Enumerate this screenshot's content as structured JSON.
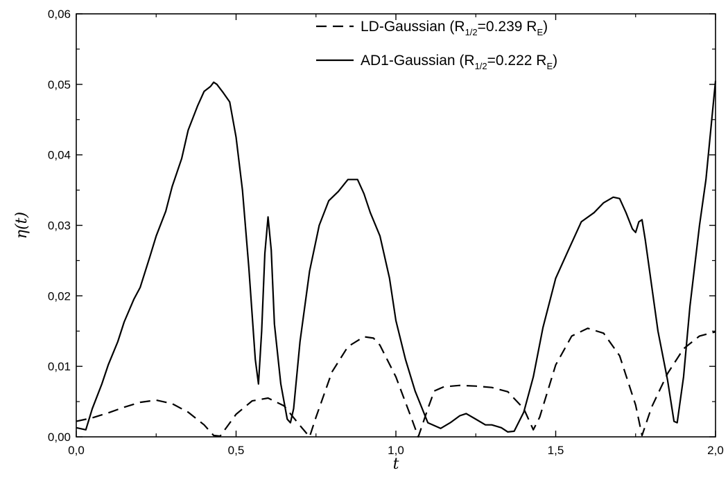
{
  "chart_data": {
    "type": "line",
    "title": "",
    "xlabel": "t",
    "ylabel": "η(t)",
    "xlim": [
      0.0,
      2.0
    ],
    "ylim": [
      0.0,
      0.06
    ],
    "x_ticks": [
      0.0,
      0.5,
      1.0,
      1.5,
      2.0
    ],
    "x_tick_labels": [
      "0,0",
      "0,5",
      "1,0",
      "1,5",
      "2,0"
    ],
    "y_ticks": [
      0.0,
      0.01,
      0.02,
      0.03,
      0.04,
      0.05,
      0.06
    ],
    "y_tick_labels": [
      "0,00",
      "0,01",
      "0,02",
      "0,03",
      "0,04",
      "0,05",
      "0,06"
    ],
    "grid": false,
    "legend_position": "top-right",
    "series": [
      {
        "name": "LD-Gaussian (R1/2=0.239 RE)",
        "legend": {
          "main": "LD-Gaussian (R",
          "sub": "1/2",
          "mid": "=0.239 R",
          "sub2": "E",
          "end": ")"
        },
        "style": "dashed",
        "color": "#000000",
        "x": [
          0.0,
          0.05,
          0.1,
          0.15,
          0.2,
          0.25,
          0.3,
          0.35,
          0.4,
          0.43,
          0.45,
          0.5,
          0.55,
          0.6,
          0.65,
          0.7,
          0.73,
          0.75,
          0.8,
          0.85,
          0.9,
          0.93,
          0.95,
          1.0,
          1.05,
          1.07,
          1.1,
          1.12,
          1.15,
          1.2,
          1.25,
          1.3,
          1.35,
          1.4,
          1.43,
          1.45,
          1.5,
          1.55,
          1.6,
          1.65,
          1.7,
          1.75,
          1.77,
          1.8,
          1.85,
          1.9,
          1.95,
          2.0
        ],
        "y": [
          0.0022,
          0.0027,
          0.0034,
          0.0042,
          0.0049,
          0.0052,
          0.0047,
          0.0035,
          0.0017,
          0.0002,
          0.0001,
          0.0032,
          0.0051,
          0.0055,
          0.0044,
          0.0016,
          0.0,
          0.0028,
          0.0092,
          0.0128,
          0.0142,
          0.014,
          0.013,
          0.0085,
          0.0025,
          0.0,
          0.004,
          0.0065,
          0.0071,
          0.0073,
          0.0072,
          0.007,
          0.0064,
          0.004,
          0.001,
          0.0028,
          0.0102,
          0.0143,
          0.0154,
          0.0147,
          0.0115,
          0.0045,
          0.0002,
          0.0042,
          0.009,
          0.0125,
          0.0143,
          0.0149
        ]
      },
      {
        "name": "AD1-Gaussian (R1/2=0.222 RE)",
        "legend": {
          "main": "AD1-Gaussian (R",
          "sub": "1/2",
          "mid": "=0.222 R",
          "sub2": "E",
          "end": ")"
        },
        "style": "solid",
        "color": "#000000",
        "x": [
          0.0,
          0.03,
          0.05,
          0.08,
          0.1,
          0.13,
          0.15,
          0.18,
          0.2,
          0.23,
          0.25,
          0.28,
          0.3,
          0.33,
          0.35,
          0.38,
          0.4,
          0.42,
          0.43,
          0.44,
          0.46,
          0.48,
          0.5,
          0.52,
          0.54,
          0.56,
          0.57,
          0.58,
          0.59,
          0.6,
          0.61,
          0.62,
          0.64,
          0.66,
          0.67,
          0.68,
          0.7,
          0.73,
          0.76,
          0.79,
          0.82,
          0.85,
          0.88,
          0.9,
          0.92,
          0.95,
          0.98,
          1.0,
          1.03,
          1.06,
          1.1,
          1.14,
          1.17,
          1.2,
          1.22,
          1.25,
          1.28,
          1.3,
          1.33,
          1.35,
          1.37,
          1.4,
          1.43,
          1.46,
          1.5,
          1.54,
          1.58,
          1.62,
          1.65,
          1.68,
          1.7,
          1.72,
          1.74,
          1.75,
          1.76,
          1.77,
          1.78,
          1.8,
          1.82,
          1.85,
          1.87,
          1.88,
          1.9,
          1.92,
          1.95,
          1.97,
          2.0
        ],
        "y": [
          0.0013,
          0.001,
          0.004,
          0.0075,
          0.0102,
          0.0135,
          0.0163,
          0.0195,
          0.0212,
          0.0255,
          0.0285,
          0.032,
          0.0355,
          0.0395,
          0.0435,
          0.047,
          0.049,
          0.0497,
          0.0503,
          0.05,
          0.0488,
          0.0475,
          0.0425,
          0.035,
          0.024,
          0.011,
          0.0075,
          0.015,
          0.026,
          0.0312,
          0.0265,
          0.016,
          0.0075,
          0.0025,
          0.002,
          0.004,
          0.0135,
          0.0235,
          0.03,
          0.0335,
          0.0348,
          0.0365,
          0.0365,
          0.0345,
          0.0318,
          0.0285,
          0.0225,
          0.0165,
          0.011,
          0.0065,
          0.002,
          0.0012,
          0.002,
          0.003,
          0.0033,
          0.0025,
          0.0017,
          0.0017,
          0.0013,
          0.0007,
          0.0008,
          0.0035,
          0.0085,
          0.0155,
          0.0225,
          0.0265,
          0.0305,
          0.0318,
          0.0332,
          0.034,
          0.0338,
          0.0318,
          0.0295,
          0.029,
          0.0305,
          0.0308,
          0.028,
          0.0215,
          0.015,
          0.008,
          0.0022,
          0.002,
          0.0085,
          0.0185,
          0.03,
          0.0365,
          0.0505
        ]
      }
    ]
  }
}
